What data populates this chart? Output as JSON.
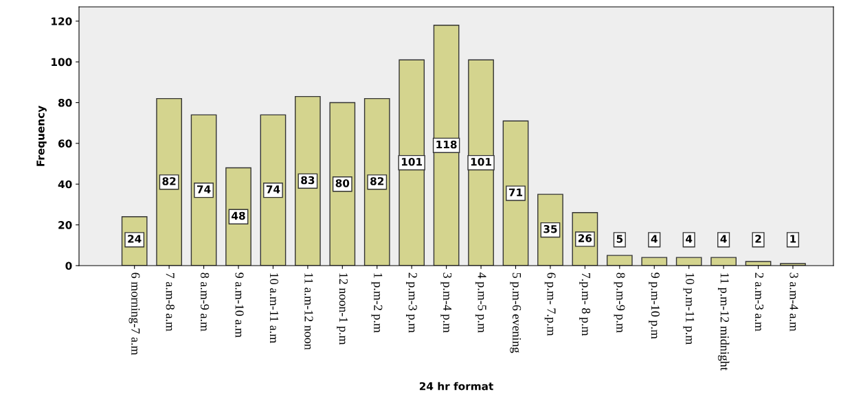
{
  "chart_data": {
    "type": "bar",
    "xlabel": "24 hr format",
    "ylabel": "Frequency",
    "categories": [
      "6 morning-7 a.m",
      "7 a.m-8 a.m",
      "8 a.m-9 a.m",
      "9 a.m-10 a.m",
      "10 a.m-11 a.m",
      "11 a.m-12 noon",
      "12 noon-1 p.m",
      "1 p.m-2 p.m",
      "2 p.m-3 p.m",
      "3 p.m-4 p.m",
      "4 p.m-5 p.m",
      "5 p.m-6 evening",
      "6 p.m- 7.p.m",
      "7.p.m- 8 p.m",
      "8 p.m-9 p.m",
      "9 p.m-10 p.m",
      "10 p.m-11 p.m",
      "11 p.m-12 midnight",
      "2 a.m-3 a.m",
      "3 a.m-4 a.m"
    ],
    "values": [
      24,
      82,
      74,
      48,
      74,
      83,
      80,
      82,
      101,
      118,
      101,
      71,
      35,
      26,
      5,
      4,
      4,
      4,
      2,
      1
    ],
    "color": "#d4d48e",
    "ylim": [
      0,
      127
    ],
    "yticks": [
      0,
      20,
      40,
      60,
      80,
      100,
      120
    ],
    "data_labels": true,
    "grid": false,
    "legend": false
  }
}
